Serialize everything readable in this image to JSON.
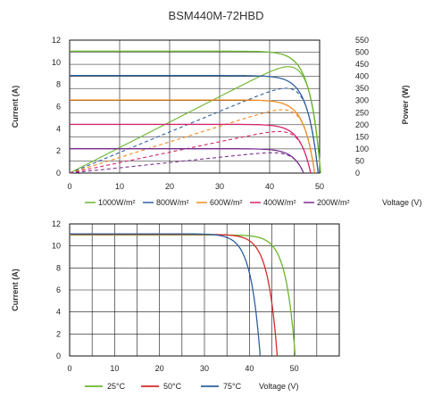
{
  "chart_data": [
    {
      "type": "line",
      "title": "BSM440M-72HBD",
      "xlabel": "Voltage (V)",
      "ylabel": "Current (A)",
      "y2label": "Power (W)",
      "xlim": [
        0,
        50
      ],
      "ylim": [
        0,
        12
      ],
      "y2lim": [
        0,
        550
      ],
      "xticks": [
        0,
        10,
        20,
        30,
        40,
        50
      ],
      "yticks": [
        0,
        2,
        4,
        6,
        8,
        10,
        12
      ],
      "y2ticks": [
        0,
        50,
        100,
        150,
        200,
        250,
        300,
        350,
        400,
        450,
        500,
        550
      ],
      "grid": true,
      "legend_position": "bottom",
      "series": [
        {
          "name": "1000W/m²",
          "color": "#6cb52d",
          "isc": 11.0,
          "voc": 50.2,
          "vmp": 42.0,
          "pmax": 440
        },
        {
          "name": "800W/m²",
          "color": "#2f5f9f",
          "isc": 8.8,
          "voc": 49.7,
          "vmp": 41.8,
          "pmax": 351
        },
        {
          "name": "600W/m²",
          "color": "#f08a1f",
          "isc": 6.6,
          "voc": 49.0,
          "vmp": 41.2,
          "pmax": 262
        },
        {
          "name": "400W/m²",
          "color": "#d6246c",
          "isc": 4.4,
          "voc": 48.2,
          "vmp": 40.5,
          "pmax": 172
        },
        {
          "name": "200W/m²",
          "color": "#7a2f8f",
          "isc": 2.2,
          "voc": 46.8,
          "vmp": 39.5,
          "pmax": 84
        }
      ]
    },
    {
      "type": "line",
      "xlabel": "Voltage (V)",
      "ylabel": "Current (A)",
      "xlim": [
        0,
        60
      ],
      "ylim": [
        0,
        12
      ],
      "xticks": [
        0,
        10,
        20,
        30,
        40,
        50
      ],
      "yticks": [
        0,
        2,
        4,
        6,
        8,
        10,
        12
      ],
      "grid": true,
      "legend_position": "bottom",
      "series": [
        {
          "name": "25°C",
          "color": "#6cb52d",
          "isc": 11.0,
          "voc": 50.2
        },
        {
          "name": "50°C",
          "color": "#d42a2a",
          "isc": 11.05,
          "voc": 46.2
        },
        {
          "name": "75°C",
          "color": "#2f5f9f",
          "isc": 11.1,
          "voc": 42.4
        }
      ]
    }
  ]
}
